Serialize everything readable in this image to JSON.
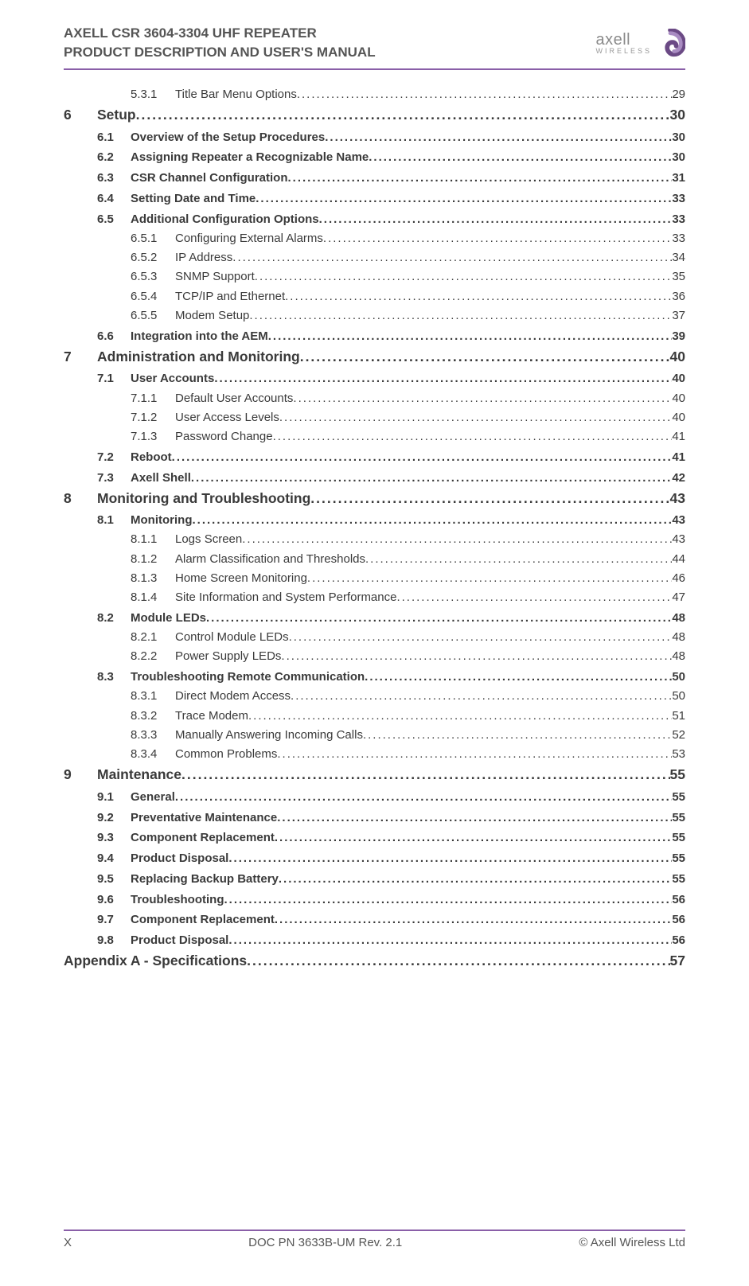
{
  "colors": {
    "divider": "#8a5fa8",
    "header_text": "#555555",
    "body_text": "#3a3a3a",
    "logo_text": "#8a8a8a",
    "logo_swirl_dark": "#6b4a85",
    "logo_swirl_light": "#a98cc2",
    "background": "#ffffff"
  },
  "typography": {
    "base_family": "Arial, Helvetica, sans-serif",
    "header_title_pt": 17,
    "lvl1_pt": 17.5,
    "lvl2_pt": 15,
    "lvl3_pt": 15,
    "footer_pt": 15
  },
  "header": {
    "line1": "AXELL CSR 3604-3304 UHF REPEATER",
    "line2": "PRODUCT DESCRIPTION AND USER'S MANUAL",
    "logo_text_top": "axell",
    "logo_text_bottom": "WIRELESS"
  },
  "footer": {
    "left": "X",
    "center": "DOC PN 3633B-UM Rev. 2.1",
    "right": "© Axell Wireless Ltd"
  },
  "toc": [
    {
      "level": 3,
      "num": "5.3.1",
      "title": "Title Bar Menu Options",
      "page": "29"
    },
    {
      "level": 1,
      "num": "6",
      "title": "Setup",
      "page": "30"
    },
    {
      "level": 2,
      "num": "6.1",
      "title": "Overview of the Setup Procedures",
      "page": "30"
    },
    {
      "level": 2,
      "num": "6.2",
      "title": "Assigning Repeater a Recognizable Name",
      "page": "30"
    },
    {
      "level": 2,
      "num": "6.3",
      "title": "CSR Channel Configuration",
      "page": "31"
    },
    {
      "level": 2,
      "num": "6.4",
      "title": "Setting Date and Time",
      "page": "33"
    },
    {
      "level": 2,
      "num": "6.5",
      "title": "Additional Configuration Options",
      "page": "33"
    },
    {
      "level": 3,
      "num": "6.5.1",
      "title": "Configuring External Alarms",
      "page": "33"
    },
    {
      "level": 3,
      "num": "6.5.2",
      "title": "IP Address",
      "page": "34"
    },
    {
      "level": 3,
      "num": "6.5.3",
      "title": "SNMP Support",
      "page": "35"
    },
    {
      "level": 3,
      "num": "6.5.4",
      "title": "TCP/IP and Ethernet",
      "page": "36"
    },
    {
      "level": 3,
      "num": "6.5.5",
      "title": "Modem Setup",
      "page": "37"
    },
    {
      "level": 2,
      "num": "6.6",
      "title": "Integration into the AEM",
      "page": "39"
    },
    {
      "level": 1,
      "num": "7",
      "title": "Administration and Monitoring",
      "page": "40"
    },
    {
      "level": 2,
      "num": "7.1",
      "title": "User Accounts",
      "page": "40"
    },
    {
      "level": 3,
      "num": "7.1.1",
      "title": "Default User Accounts",
      "page": "40"
    },
    {
      "level": 3,
      "num": "7.1.2",
      "title": "User Access Levels",
      "page": "40"
    },
    {
      "level": 3,
      "num": "7.1.3",
      "title": "Password Change",
      "page": "41"
    },
    {
      "level": 2,
      "num": "7.2",
      "title": "Reboot",
      "page": "41"
    },
    {
      "level": 2,
      "num": "7.3",
      "title": "Axell Shell",
      "page": "42"
    },
    {
      "level": 1,
      "num": "8",
      "title": "Monitoring and Troubleshooting",
      "page": "43"
    },
    {
      "level": 2,
      "num": "8.1",
      "title": "Monitoring",
      "page": "43"
    },
    {
      "level": 3,
      "num": "8.1.1",
      "title": "Logs Screen",
      "page": "43"
    },
    {
      "level": 3,
      "num": "8.1.2",
      "title": "Alarm Classification and Thresholds",
      "page": "44"
    },
    {
      "level": 3,
      "num": "8.1.3",
      "title": "Home Screen Monitoring",
      "page": "46"
    },
    {
      "level": 3,
      "num": "8.1.4",
      "title": "Site Information and System Performance",
      "page": "47"
    },
    {
      "level": 2,
      "num": "8.2",
      "title": "Module LEDs",
      "page": "48"
    },
    {
      "level": 3,
      "num": "8.2.1",
      "title": "Control Module LEDs",
      "page": "48"
    },
    {
      "level": 3,
      "num": "8.2.2",
      "title": "Power Supply LEDs",
      "page": "48"
    },
    {
      "level": 2,
      "num": "8.3",
      "title": "Troubleshooting Remote Communication",
      "page": "50"
    },
    {
      "level": 3,
      "num": "8.3.1",
      "title": "Direct Modem Access",
      "page": "50"
    },
    {
      "level": 3,
      "num": "8.3.2",
      "title": "Trace Modem",
      "page": "51"
    },
    {
      "level": 3,
      "num": "8.3.3",
      "title": "Manually Answering Incoming Calls",
      "page": "52"
    },
    {
      "level": 3,
      "num": "8.3.4",
      "title": "Common Problems",
      "page": "53"
    },
    {
      "level": 1,
      "num": "9",
      "title": "Maintenance",
      "page": "55"
    },
    {
      "level": 2,
      "num": "9.1",
      "title": "General",
      "page": "55"
    },
    {
      "level": 2,
      "num": "9.2",
      "title": "Preventative Maintenance",
      "page": "55"
    },
    {
      "level": 2,
      "num": "9.3",
      "title": "Component Replacement",
      "page": "55"
    },
    {
      "level": 2,
      "num": "9.4",
      "title": "Product Disposal",
      "page": "55"
    },
    {
      "level": 2,
      "num": "9.5",
      "title": "Replacing Backup Battery",
      "page": "55"
    },
    {
      "level": 2,
      "num": "9.6",
      "title": "Troubleshooting",
      "page": "56"
    },
    {
      "level": 2,
      "num": "9.7",
      "title": "Component Replacement",
      "page": "56"
    },
    {
      "level": 2,
      "num": "9.8",
      "title": "Product Disposal",
      "page": "56"
    },
    {
      "level": 0,
      "num": "",
      "title": "Appendix A - Specifications",
      "page": "57"
    }
  ]
}
